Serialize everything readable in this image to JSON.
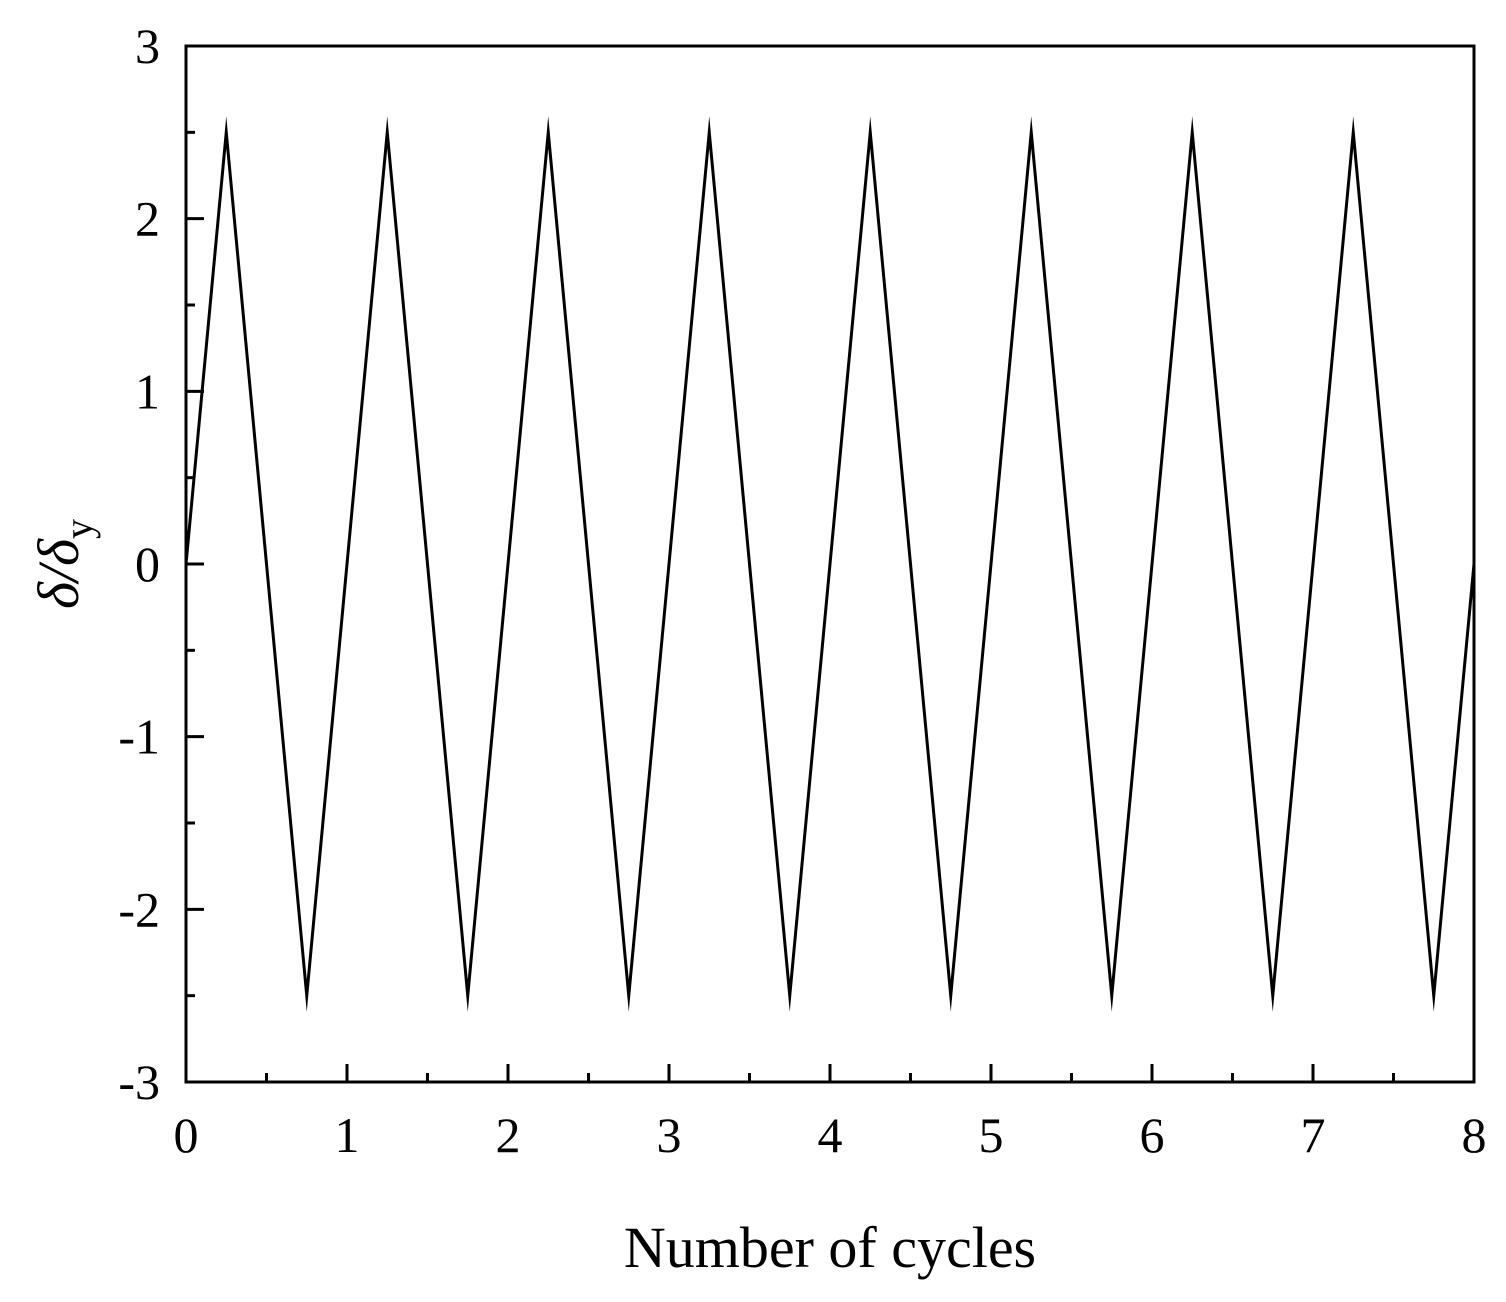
{
  "chart_data": {
    "type": "line",
    "title": "",
    "xlabel": "Number of cycles",
    "ylabel": {
      "main": "δ/δ",
      "subscript": "y"
    },
    "xlim": [
      0,
      8
    ],
    "ylim": [
      -3,
      3
    ],
    "xticks": [
      0,
      1,
      2,
      3,
      4,
      5,
      6,
      7,
      8
    ],
    "yticks": [
      -3,
      -2,
      -1,
      0,
      1,
      2,
      3
    ],
    "grid": false,
    "legend": "none",
    "line_color": "#000000",
    "series": [
      {
        "x": [
          0,
          0.25,
          0.75,
          1.25,
          1.75,
          2.25,
          2.75,
          3.25,
          3.75,
          4.25,
          4.75,
          5.25,
          5.75,
          6.25,
          6.75,
          7.25,
          7.75,
          8
        ],
        "values": [
          0,
          2.5,
          -2.5,
          2.5,
          -2.5,
          2.5,
          -2.5,
          2.5,
          -2.5,
          2.5,
          -2.5,
          2.5,
          -2.5,
          2.5,
          -2.5,
          2.5,
          -2.5,
          0
        ]
      }
    ]
  }
}
